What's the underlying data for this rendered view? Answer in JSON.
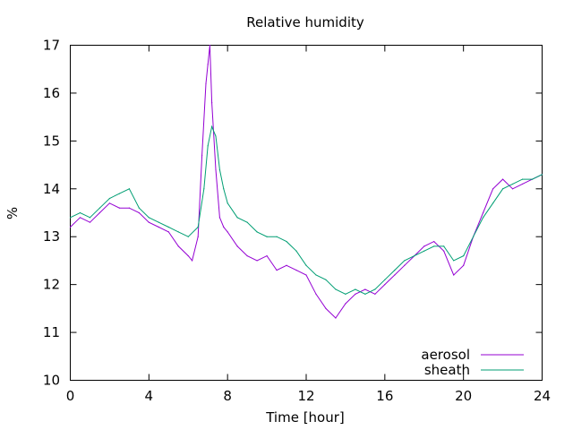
{
  "chart_data": {
    "type": "line",
    "title": "Relative humidity",
    "xlabel": "Time [hour]",
    "ylabel": "%",
    "xlim": [
      0,
      24
    ],
    "ylim": [
      10,
      17
    ],
    "xticks": [
      "0",
      "4",
      "8",
      "12",
      "16",
      "20",
      "24"
    ],
    "yticks": [
      "10",
      "11",
      "12",
      "13",
      "14",
      "15",
      "16",
      "17"
    ],
    "grid": false,
    "legend_position": "bottom-right",
    "series": [
      {
        "name": "aerosol",
        "color": "#9400d3",
        "x": [
          0,
          0.5,
          1,
          1.5,
          2,
          2.5,
          3,
          3.5,
          4,
          4.5,
          5,
          5.5,
          6,
          6.2,
          6.5,
          6.7,
          6.9,
          7.0,
          7.1,
          7.2,
          7.4,
          7.6,
          7.8,
          8,
          8.5,
          9,
          9.5,
          10,
          10.5,
          11,
          11.5,
          12,
          12.5,
          13,
          13.5,
          14,
          14.5,
          15,
          15.5,
          16,
          16.5,
          17,
          17.5,
          18,
          18.5,
          19,
          19.5,
          20,
          20.5,
          21,
          21.5,
          22,
          22.5,
          23,
          23.5,
          24
        ],
        "y": [
          13.2,
          13.4,
          13.3,
          13.5,
          13.7,
          13.6,
          13.6,
          13.5,
          13.3,
          13.2,
          13.1,
          12.8,
          12.6,
          12.5,
          13.0,
          14.7,
          16.2,
          16.6,
          17.0,
          15.8,
          14.4,
          13.4,
          13.2,
          13.1,
          12.8,
          12.6,
          12.5,
          12.6,
          12.3,
          12.4,
          12.3,
          12.2,
          11.8,
          11.5,
          11.3,
          11.6,
          11.8,
          11.9,
          11.8,
          12.0,
          12.2,
          12.4,
          12.6,
          12.8,
          12.9,
          12.7,
          12.2,
          12.4,
          13.0,
          13.5,
          14.0,
          14.2,
          14.0,
          14.1,
          14.2,
          14.3
        ]
      },
      {
        "name": "sheath",
        "color": "#009e73",
        "x": [
          0,
          0.5,
          1,
          1.5,
          2,
          2.5,
          3,
          3.5,
          4,
          4.5,
          5,
          5.5,
          6,
          6.5,
          6.8,
          7.0,
          7.2,
          7.4,
          7.6,
          7.8,
          8,
          8.5,
          9,
          9.5,
          10,
          10.5,
          11,
          11.5,
          12,
          12.5,
          13,
          13.5,
          14,
          14.5,
          15,
          15.5,
          16,
          16.5,
          17,
          17.5,
          18,
          18.5,
          19,
          19.5,
          20,
          20.5,
          21,
          21.5,
          22,
          22.5,
          23,
          23.5,
          24
        ],
        "y": [
          13.4,
          13.5,
          13.4,
          13.6,
          13.8,
          13.9,
          14.0,
          13.6,
          13.4,
          13.3,
          13.2,
          13.1,
          13.0,
          13.2,
          14.0,
          14.9,
          15.3,
          15.1,
          14.4,
          14.0,
          13.7,
          13.4,
          13.3,
          13.1,
          13.0,
          13.0,
          12.9,
          12.7,
          12.4,
          12.2,
          12.1,
          11.9,
          11.8,
          11.9,
          11.8,
          11.9,
          12.1,
          12.3,
          12.5,
          12.6,
          12.7,
          12.8,
          12.8,
          12.5,
          12.6,
          13.0,
          13.4,
          13.7,
          14.0,
          14.1,
          14.2,
          14.2,
          14.3
        ]
      }
    ]
  }
}
